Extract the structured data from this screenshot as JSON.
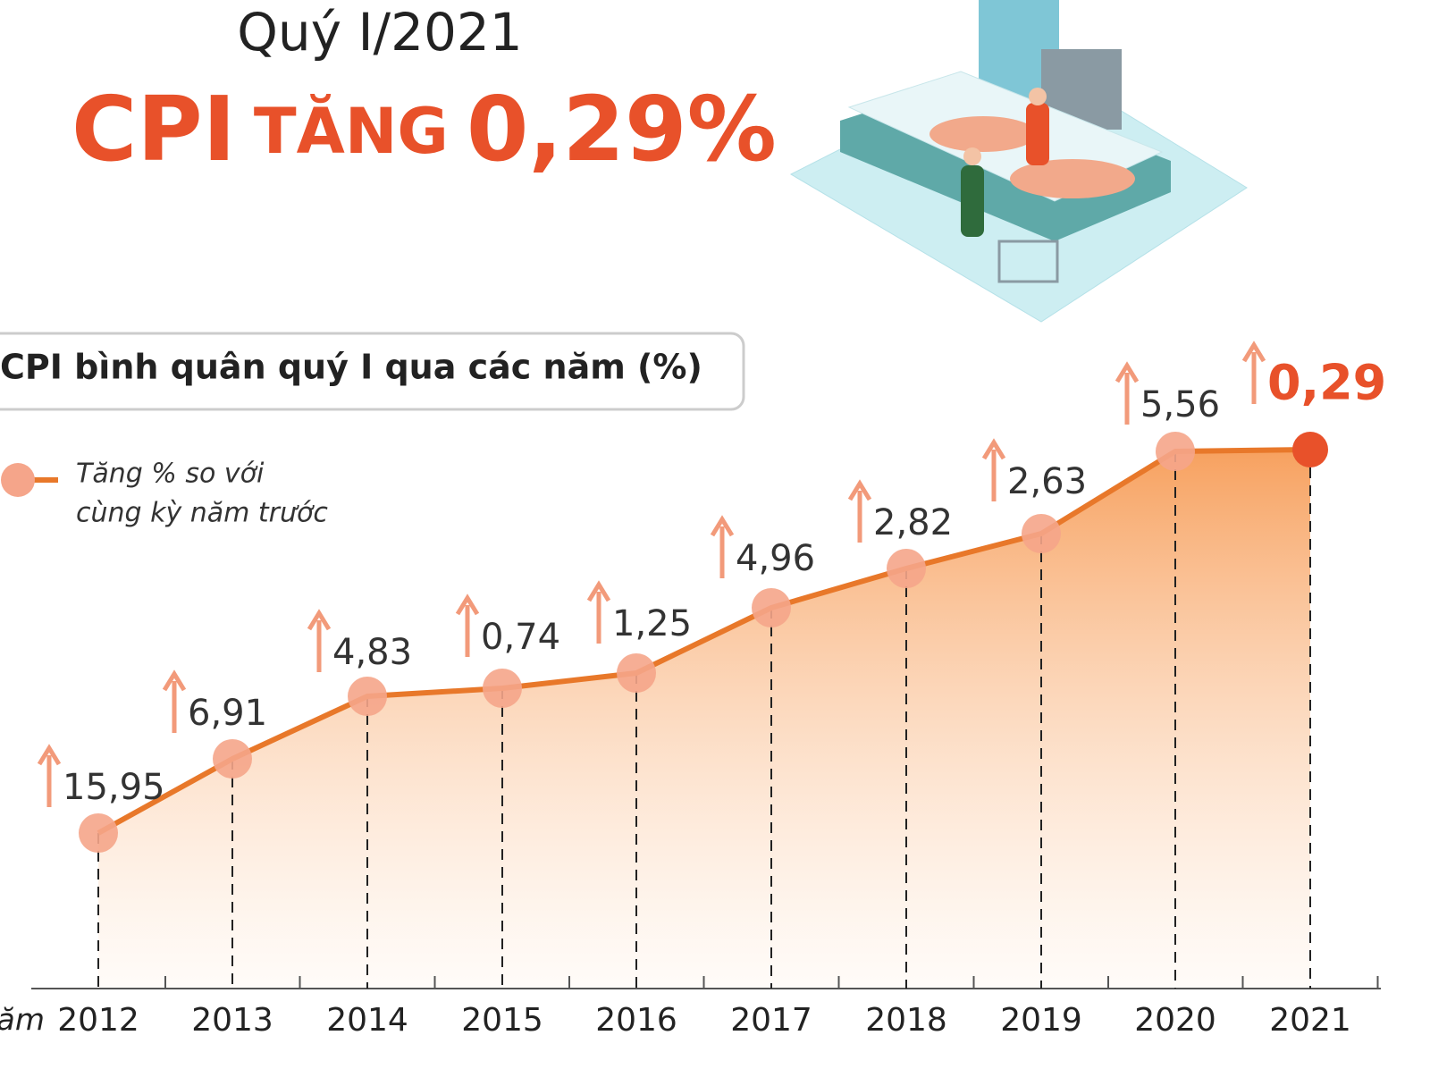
{
  "header": {
    "period": "Quý I/2021",
    "title_parts": [
      "CPI",
      "TĂNG",
      "0,29%"
    ]
  },
  "section_title": "CPI bình quân quý I qua các năm (%)",
  "legend": {
    "lines": [
      "Tăng % so với",
      "cùng kỳ năm trước"
    ]
  },
  "axis_title": "Năm",
  "points": [
    {
      "year": "2012",
      "value": "15,95"
    },
    {
      "year": "2013",
      "value": "6,91"
    },
    {
      "year": "2014",
      "value": "4,83"
    },
    {
      "year": "2015",
      "value": "0,74"
    },
    {
      "year": "2016",
      "value": "1,25"
    },
    {
      "year": "2017",
      "value": "4,96"
    },
    {
      "year": "2018",
      "value": "2,82"
    },
    {
      "year": "2019",
      "value": "2,63"
    },
    {
      "year": "2020",
      "value": "5,56"
    },
    {
      "year": "2021",
      "value": "0,29"
    }
  ]
}
